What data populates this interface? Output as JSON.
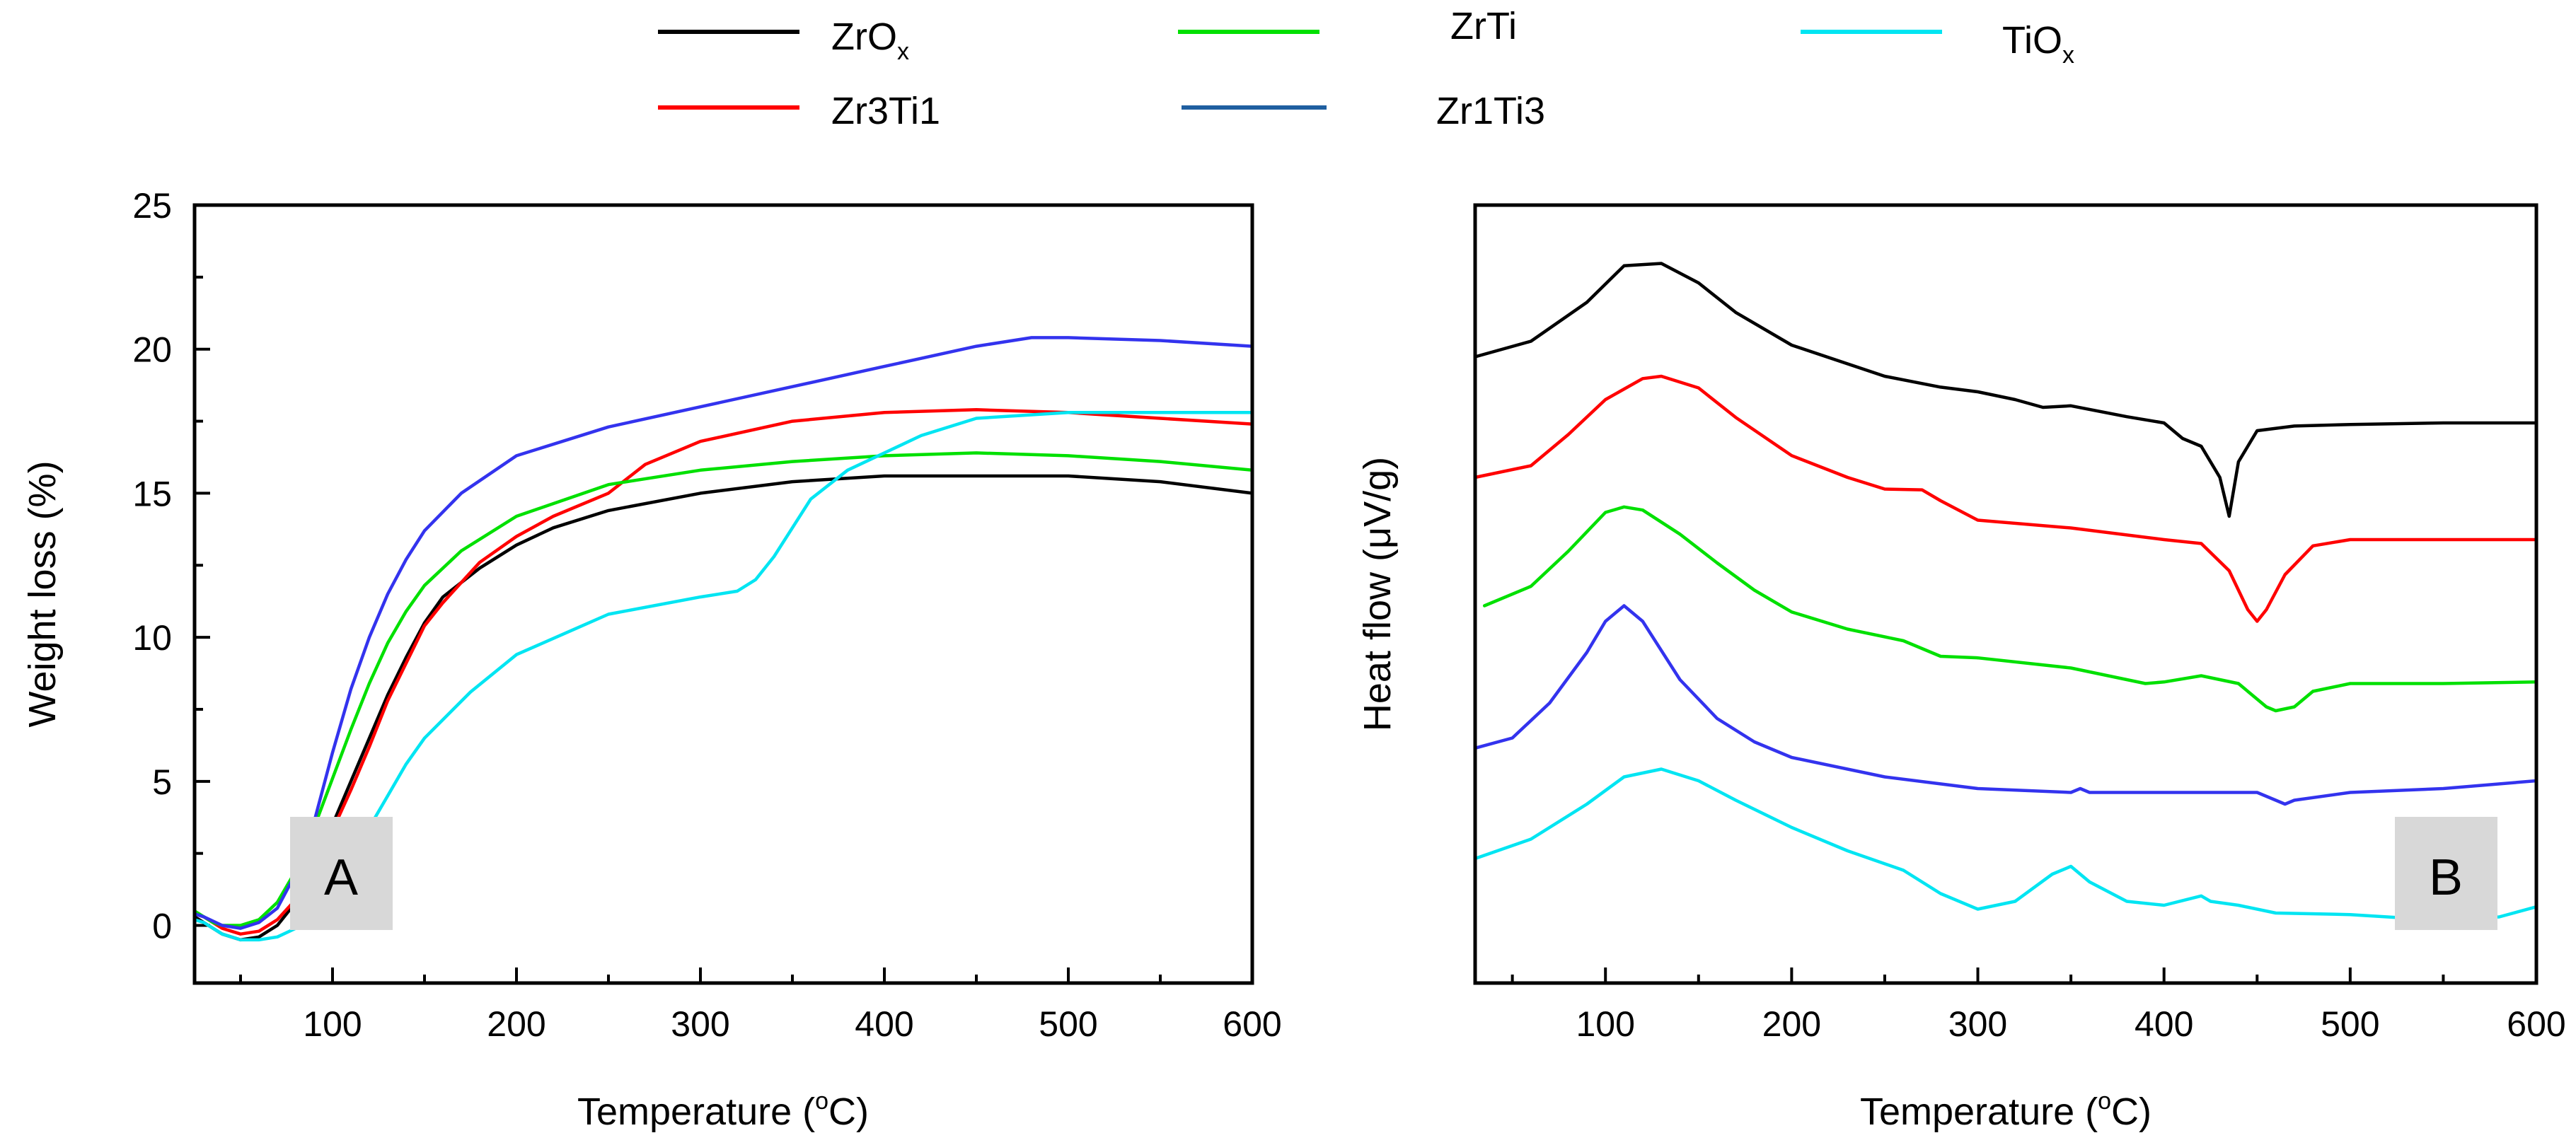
{
  "legend": [
    {
      "label": "ZrO",
      "sub": "x",
      "color": "#000000"
    },
    {
      "label": "ZrTi",
      "sub": "",
      "color": "#00e000"
    },
    {
      "label": "TiO",
      "sub": "x",
      "color": "#00e5f2"
    },
    {
      "label": "Zr3Ti1",
      "sub": "",
      "color": "#ff0000"
    },
    {
      "label": "Zr1Ti3",
      "sub": "",
      "color": "#1f5fa0"
    }
  ],
  "chart_data": [
    {
      "type": "line",
      "panel_label": "A",
      "title": "",
      "xlabel_main": "Temperature (",
      "xlabel_deg": "o",
      "xlabel_unit": "C)",
      "ylabel": "Weight loss (%)",
      "xlim": [
        25,
        600
      ],
      "ylim": [
        25,
        -2
      ],
      "y_inverted": true,
      "x_ticks": [
        100,
        200,
        300,
        400,
        500,
        600
      ],
      "y_ticks": [
        0,
        5,
        10,
        15,
        20,
        25
      ],
      "series": [
        {
          "name": "ZrOx",
          "color": "#000000",
          "x": [
            25,
            30,
            40,
            50,
            60,
            70,
            80,
            90,
            100,
            110,
            120,
            130,
            140,
            150,
            160,
            180,
            200,
            220,
            250,
            300,
            350,
            400,
            450,
            500,
            550,
            600
          ],
          "y": [
            0.3,
            0.1,
            -0.3,
            -0.5,
            -0.4,
            0,
            0.8,
            2,
            3.5,
            5,
            6.5,
            8,
            9.3,
            10.5,
            11.4,
            12.4,
            13.2,
            13.8,
            14.4,
            15,
            15.4,
            15.6,
            15.6,
            15.6,
            15.4,
            15
          ]
        },
        {
          "name": "Zr3Ti1",
          "color": "#ff0000",
          "x": [
            25,
            30,
            40,
            50,
            60,
            70,
            80,
            90,
            100,
            110,
            120,
            130,
            140,
            150,
            160,
            180,
            200,
            220,
            250,
            270,
            300,
            350,
            400,
            450,
            500,
            550,
            600
          ],
          "y": [
            0.4,
            0.3,
            -0.1,
            -0.3,
            -0.2,
            0.2,
            0.9,
            2,
            3.3,
            4.7,
            6.2,
            7.8,
            9.1,
            10.4,
            11.2,
            12.6,
            13.5,
            14.2,
            15,
            16,
            16.8,
            17.5,
            17.8,
            17.9,
            17.8,
            17.6,
            17.4
          ]
        },
        {
          "name": "ZrTi",
          "color": "#00e000",
          "x": [
            25,
            30,
            35,
            40,
            50,
            60,
            70,
            80,
            90,
            100,
            110,
            120,
            130,
            140,
            150,
            170,
            200,
            250,
            300,
            350,
            400,
            450,
            500,
            550,
            600
          ],
          "y": [
            0.5,
            0.3,
            0.1,
            0,
            0,
            0.2,
            0.8,
            1.9,
            3.4,
            5.1,
            6.8,
            8.4,
            9.8,
            10.9,
            11.8,
            13,
            14.2,
            15.3,
            15.8,
            16.1,
            16.3,
            16.4,
            16.3,
            16.1,
            15.8
          ]
        },
        {
          "name": "Zr1Ti3",
          "color": "#3333ee",
          "x": [
            25,
            30,
            40,
            50,
            60,
            70,
            80,
            90,
            100,
            110,
            120,
            130,
            140,
            150,
            170,
            200,
            250,
            300,
            350,
            400,
            450,
            480,
            500,
            550,
            600
          ],
          "y": [
            0.4,
            0.3,
            0,
            -0.1,
            0.1,
            0.6,
            1.8,
            3.6,
            6,
            8.2,
            10,
            11.5,
            12.7,
            13.7,
            15,
            16.3,
            17.3,
            18,
            18.7,
            19.4,
            20.1,
            20.4,
            20.4,
            20.3,
            20.1
          ]
        },
        {
          "name": "TiOx",
          "color": "#00e5f2",
          "x": [
            25,
            30,
            40,
            50,
            60,
            70,
            80,
            90,
            100,
            110,
            120,
            130,
            140,
            150,
            175,
            200,
            250,
            300,
            320,
            330,
            340,
            350,
            360,
            380,
            400,
            420,
            450,
            500,
            550,
            600
          ],
          "y": [
            0.2,
            0.1,
            -0.3,
            -0.5,
            -0.5,
            -0.4,
            -0.1,
            0.5,
            1.3,
            2.3,
            3.4,
            4.5,
            5.6,
            6.5,
            8.1,
            9.4,
            10.8,
            11.4,
            11.6,
            12,
            12.8,
            13.8,
            14.8,
            15.8,
            16.4,
            17,
            17.6,
            17.8,
            17.8,
            17.8
          ]
        }
      ]
    },
    {
      "type": "line",
      "panel_label": "B",
      "title": "",
      "xlabel_main": "Temperature (",
      "xlabel_deg": "o",
      "xlabel_unit": "C)",
      "ylabel_main": "Heat flow (",
      "ylabel_mu": "μ",
      "ylabel_unit": "V/g)",
      "xlim": [
        30,
        600
      ],
      "ylim": [
        0,
        100
      ],
      "y_ticks_shown": false,
      "x_ticks": [
        100,
        200,
        300,
        400,
        500,
        600
      ],
      "series": [
        {
          "name": "TiOx",
          "color": "#00e5f2",
          "x": [
            30,
            60,
            90,
            110,
            130,
            150,
            170,
            200,
            230,
            260,
            280,
            300,
            320,
            340,
            350,
            360,
            380,
            400,
            420,
            425,
            440,
            460,
            500,
            540,
            580,
            600
          ],
          "y": [
            84,
            81.5,
            77,
            73.5,
            72.5,
            74,
            76.5,
            80,
            83,
            85.5,
            88.5,
            90.5,
            89.5,
            86,
            85,
            87,
            89.5,
            90,
            88.8,
            89.5,
            90,
            91,
            91.2,
            91.8,
            91.5,
            90.2
          ]
        },
        {
          "name": "Zr1Ti3",
          "color": "#3333ee",
          "x": [
            30,
            50,
            70,
            90,
            100,
            110,
            120,
            140,
            160,
            180,
            200,
            250,
            300,
            350,
            355,
            360,
            400,
            450,
            460,
            465,
            470,
            500,
            550,
            600
          ],
          "y": [
            69.8,
            68.5,
            64,
            57.5,
            53.5,
            51.5,
            53.5,
            61,
            66,
            69,
            71,
            73.5,
            75,
            75.5,
            75,
            75.5,
            75.5,
            75.5,
            76.5,
            77,
            76.5,
            75.5,
            75,
            74
          ]
        },
        {
          "name": "ZrTi",
          "color": "#00e000",
          "x": [
            35,
            60,
            80,
            100,
            110,
            120,
            140,
            160,
            180,
            200,
            230,
            260,
            280,
            300,
            350,
            390,
            400,
            420,
            440,
            455,
            460,
            470,
            480,
            500,
            550,
            600
          ],
          "y": [
            51.5,
            49,
            44.5,
            39.5,
            38.8,
            39.2,
            42.3,
            46,
            49.5,
            52.3,
            54.5,
            56,
            58,
            58.2,
            59.5,
            61.5,
            61.3,
            60.5,
            61.5,
            64.5,
            65,
            64.5,
            62.5,
            61.5,
            61.5,
            61.3
          ]
        },
        {
          "name": "Zr3Ti1",
          "color": "#ff0000",
          "x": [
            30,
            60,
            80,
            100,
            120,
            130,
            150,
            170,
            200,
            230,
            250,
            270,
            280,
            300,
            350,
            400,
            420,
            435,
            445,
            450,
            455,
            465,
            480,
            500,
            550,
            600
          ],
          "y": [
            35,
            33.5,
            29.5,
            25,
            22.3,
            22,
            23.5,
            27.3,
            32.2,
            35,
            36.5,
            36.6,
            38,
            40.5,
            41.5,
            43,
            43.5,
            47,
            52,
            53.5,
            52,
            47.5,
            43.8,
            43,
            43,
            43
          ]
        },
        {
          "name": "ZrOx",
          "color": "#000000",
          "x": [
            30,
            60,
            90,
            110,
            130,
            150,
            170,
            200,
            250,
            280,
            300,
            320,
            335,
            350,
            380,
            400,
            410,
            420,
            430,
            435,
            440,
            445,
            450,
            470,
            500,
            550,
            600
          ],
          "y": [
            19.5,
            17.5,
            12.5,
            7.8,
            7.5,
            10,
            13.8,
            18,
            22,
            23.4,
            24,
            25,
            26,
            25.8,
            27.2,
            28,
            30,
            31,
            35,
            40,
            33,
            31,
            29,
            28.4,
            28.2,
            28,
            28
          ]
        }
      ]
    }
  ]
}
